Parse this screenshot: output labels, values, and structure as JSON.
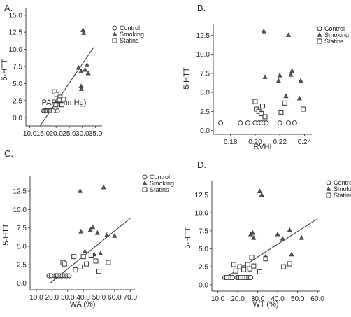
{
  "colors": {
    "marker": "#333333",
    "axis": "#444444",
    "fitline": "#333333",
    "background": "#ffffff"
  },
  "chart_data": [
    {
      "panel": "A.",
      "type": "scatter",
      "xlabel": "PAP (mmHg)",
      "ylabel": "5-HTT",
      "xticks": [
        "10.0",
        "15.0",
        "20.0",
        "25.0",
        "30.0",
        "35.0"
      ],
      "yticks": [
        "0.0",
        "2.5",
        "5.0",
        "7.5",
        "10.0",
        "12.5",
        "15.0"
      ],
      "xlim": [
        8.5,
        37.5
      ],
      "ylim": [
        -1.2,
        16
      ],
      "legend_position": "top-right",
      "fit_line": [
        [
          13.9,
          -1.2
        ],
        [
          34.3,
          10.3
        ]
      ],
      "series": [
        {
          "name": "Control",
          "marker": "circle",
          "points": [
            [
              15.3,
              1
            ],
            [
              15.7,
              1
            ],
            [
              16.2,
              1
            ],
            [
              16.7,
              1
            ],
            [
              17.3,
              1
            ],
            [
              17.8,
              1
            ],
            [
              18.3,
              1
            ],
            [
              18.9,
              1
            ],
            [
              20.5,
              1
            ]
          ]
        },
        {
          "name": "Smoking",
          "marker": "triangle",
          "points": [
            [
              28.5,
              7.3
            ],
            [
              29.5,
              4.6
            ],
            [
              29.6,
              4.2
            ],
            [
              29.5,
              6.8
            ],
            [
              30.2,
              12.8
            ],
            [
              30.5,
              12.4
            ],
            [
              31,
              7
            ],
            [
              31.8,
              7.7
            ],
            [
              32.2,
              6.5
            ]
          ]
        },
        {
          "name": "Statins",
          "marker": "square",
          "points": [
            [
              19.4,
              3.8
            ],
            [
              19.9,
              1.9
            ],
            [
              20.3,
              3.4
            ],
            [
              21,
              2.5
            ],
            [
              21.5,
              3
            ],
            [
              21.3,
              2.6
            ],
            [
              22.2,
              1.9
            ],
            [
              22.8,
              2.7
            ]
          ]
        }
      ]
    },
    {
      "panel": "B.",
      "type": "scatter",
      "xlabel": "RVHI",
      "ylabel": "5-HTT",
      "xticks": [
        "0.18",
        "0.20",
        "0.22",
        "0.24"
      ],
      "yticks": [
        "0.0",
        "2.5",
        "5.0",
        "7.5",
        "10.0",
        "12.5"
      ],
      "xlim": [
        0.166,
        0.246
      ],
      "ylim": [
        -0.5,
        14
      ],
      "legend_position": "top-right",
      "fit_line": null,
      "series": [
        {
          "name": "Control",
          "marker": "circle",
          "points": [
            [
              0.172,
              1
            ],
            [
              0.188,
              1
            ],
            [
              0.194,
              1
            ],
            [
              0.2,
              1
            ],
            [
              0.203,
              1
            ],
            [
              0.205,
              1
            ],
            [
              0.207,
              1
            ],
            [
              0.209,
              1
            ],
            [
              0.22,
              1
            ],
            [
              0.227,
              1
            ],
            [
              0.232,
              1
            ]
          ]
        },
        {
          "name": "Smoking",
          "marker": "triangle",
          "points": [
            [
              0.207,
              13
            ],
            [
              0.208,
              7
            ],
            [
              0.219,
              6.5
            ],
            [
              0.22,
              7.2
            ],
            [
              0.225,
              4.5
            ],
            [
              0.227,
              12.5
            ],
            [
              0.229,
              7.3
            ],
            [
              0.23,
              7.8
            ],
            [
              0.236,
              4.2
            ],
            [
              0.237,
              6.5
            ]
          ]
        },
        {
          "name": "Statins",
          "marker": "square",
          "points": [
            [
              0.2,
              3.8
            ],
            [
              0.201,
              2.8
            ],
            [
              0.203,
              2.5
            ],
            [
              0.205,
              2.2
            ],
            [
              0.206,
              3.2
            ],
            [
              0.208,
              1.8
            ],
            [
              0.221,
              2.4
            ],
            [
              0.224,
              3.6
            ],
            [
              0.239,
              2.8
            ]
          ]
        }
      ]
    },
    {
      "panel": "C.",
      "type": "scatter",
      "xlabel": "WA (%)",
      "ylabel": "5-HTT",
      "xticks": [
        "10.0",
        "20.0",
        "30.0",
        "40.0",
        "50.0",
        "60.0",
        "70.0"
      ],
      "yticks": [
        "0.0",
        "2.5",
        "5.0",
        "7.5",
        "10.0",
        "12.5"
      ],
      "xlim": [
        6,
        73
      ],
      "ylim": [
        -0.9,
        14.5
      ],
      "legend_position": "top-right",
      "fit_line": [
        [
          18.5,
          -0.05
        ],
        [
          70,
          8.8
        ]
      ],
      "series": [
        {
          "name": "Control",
          "marker": "circle",
          "points": [
            [
              18,
              1
            ],
            [
              19.5,
              1
            ],
            [
              21.5,
              1
            ],
            [
              22.5,
              1
            ],
            [
              23.5,
              1
            ],
            [
              24.5,
              1
            ],
            [
              25.5,
              1
            ],
            [
              26.5,
              1
            ],
            [
              28,
              1
            ],
            [
              29.5,
              1
            ],
            [
              31,
              1
            ]
          ]
        },
        {
          "name": "Smoking",
          "marker": "triangle",
          "points": [
            [
              38,
              12.5
            ],
            [
              38.5,
              7
            ],
            [
              41,
              4.3
            ],
            [
              44.5,
              7.2
            ],
            [
              46,
              7.6
            ],
            [
              47,
              3.9
            ],
            [
              49,
              6.8
            ],
            [
              51,
              4
            ],
            [
              53,
              13
            ],
            [
              55,
              6.5
            ],
            [
              60,
              6.4
            ]
          ]
        },
        {
          "name": "Statins",
          "marker": "square",
          "points": [
            [
              27,
              2.8
            ],
            [
              28,
              2.6
            ],
            [
              34,
              3.6
            ],
            [
              35,
              1.8
            ],
            [
              38,
              2.2
            ],
            [
              40,
              3.6
            ],
            [
              42,
              2.6
            ],
            [
              45,
              3.8
            ],
            [
              48,
              3
            ],
            [
              50,
              1.6
            ],
            [
              56,
              2.8
            ]
          ]
        }
      ]
    },
    {
      "panel": "D.",
      "type": "scatter",
      "xlabel": "WT (%)",
      "ylabel": "5-HTT",
      "xticks": [
        "10.0",
        "20.0",
        "30.0",
        "40.0",
        "50.0",
        "60.0"
      ],
      "yticks": [
        "0.0",
        "2.5",
        "5.0",
        "7.5",
        "10.0",
        "12.5"
      ],
      "xlim": [
        7,
        61
      ],
      "ylim": [
        -0.9,
        14.5
      ],
      "legend_position": "top-right",
      "fit_line": [
        [
          12.5,
          0.75
        ],
        [
          59.5,
          9.1
        ]
      ],
      "series": [
        {
          "name": "Control",
          "marker": "circle",
          "points": [
            [
              13.5,
              1
            ],
            [
              14.5,
              1
            ],
            [
              15.5,
              1
            ],
            [
              16.5,
              1
            ],
            [
              17.5,
              1
            ],
            [
              19.5,
              1
            ],
            [
              20.5,
              1
            ],
            [
              21.5,
              1
            ],
            [
              22.5,
              1
            ],
            [
              23.5,
              1
            ],
            [
              24.5,
              1
            ],
            [
              25.5,
              1
            ],
            [
              26.5,
              1
            ]
          ]
        },
        {
          "name": "Smoking",
          "marker": "triangle",
          "points": [
            [
              26.5,
              7
            ],
            [
              27.5,
              7.2
            ],
            [
              28,
              6.5
            ],
            [
              31,
              13
            ],
            [
              32,
              12.5
            ],
            [
              34,
              3.9
            ],
            [
              40,
              7
            ],
            [
              42.5,
              6.4
            ],
            [
              46,
              7.6
            ],
            [
              47,
              4.2
            ],
            [
              52,
              6.5
            ]
          ]
        },
        {
          "name": "Statins",
          "marker": "square",
          "points": [
            [
              18,
              2.8
            ],
            [
              19,
              1.9
            ],
            [
              21,
              2.5
            ],
            [
              23,
              2.1
            ],
            [
              25,
              2.8
            ],
            [
              26,
              2.2
            ],
            [
              27,
              3.8
            ],
            [
              28,
              2.6
            ],
            [
              31,
              1.8
            ],
            [
              34,
              3.6
            ],
            [
              43,
              2.5
            ],
            [
              46,
              2.9
            ]
          ]
        }
      ]
    }
  ]
}
